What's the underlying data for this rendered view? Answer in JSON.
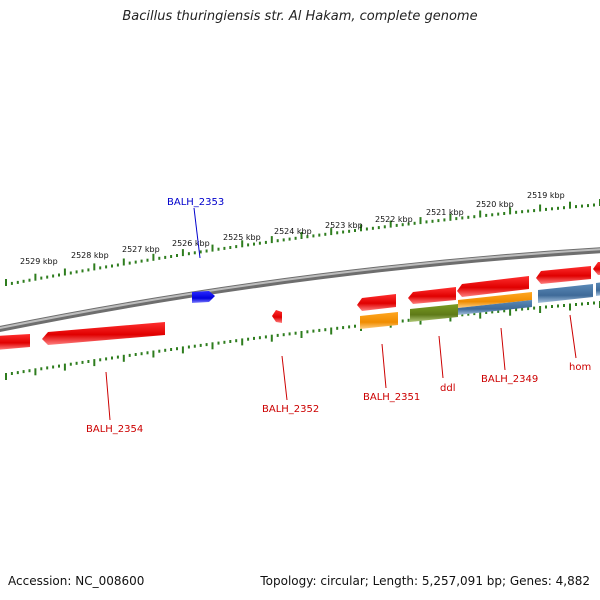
{
  "title": "Bacillus thuringiensis str. Al Hakam, complete genome",
  "footer": {
    "accession": "Accession: NC_008600",
    "summary": "Topology: circular; Length: 5,257,091 bp; Genes: 4,882"
  },
  "colors": {
    "backbone": "#8c8c8c",
    "tick": "#2e7d1e",
    "kbp_label": "#111111",
    "gene_red": "#ee0000",
    "gene_blue": "#0000e6",
    "gene_orange": "#ff9900",
    "gene_olive": "#6e8c1e",
    "gene_steel": "#4a78a8",
    "label_red": "#cc0000",
    "label_blue": "#0000cc"
  },
  "kbp_labels": [
    "2529 kbp",
    "2528 kbp",
    "2527 kbp",
    "2526 kbp",
    "2525 kbp",
    "2524 kbp",
    "2523 kbp",
    "2522 kbp",
    "2521 kbp",
    "2520 kbp",
    "2519 kbp"
  ],
  "gene_labels": [
    {
      "id": "balh_2353",
      "text": "BALH_2353",
      "color": "label_blue"
    },
    {
      "id": "balh_2354",
      "text": "BALH_2354",
      "color": "label_red"
    },
    {
      "id": "balh_2352",
      "text": "BALH_2352",
      "color": "label_red"
    },
    {
      "id": "balh_2351",
      "text": "BALH_2351",
      "color": "label_red"
    },
    {
      "id": "ddl",
      "text": "ddl",
      "color": "label_red"
    },
    {
      "id": "balh_2349",
      "text": "BALH_2349",
      "color": "label_red"
    },
    {
      "id": "hom",
      "text": "hom",
      "color": "label_red"
    }
  ]
}
